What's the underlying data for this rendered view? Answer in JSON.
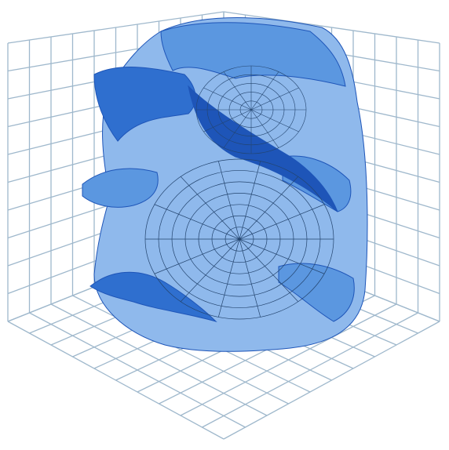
{
  "figure": {
    "background": "#ffffff",
    "grid_color": "#9fb8cc",
    "surface_colors": {
      "light": "#8fb9ec",
      "mid": "#5b97e0",
      "dark": "#2f6fcf",
      "deep": "#1e55b8",
      "mesh": "#23446e"
    },
    "grid": {
      "left_wall_cells": 10,
      "right_wall_cells": 10,
      "floor_cells": 10
    }
  }
}
